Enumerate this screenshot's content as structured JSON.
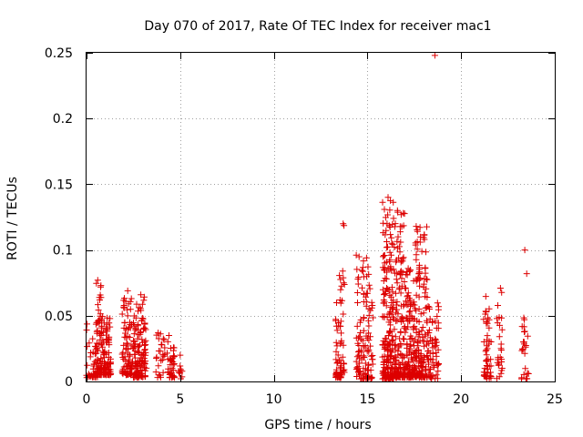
{
  "chart_data": {
    "type": "scatter",
    "title": "Day 070 of 2017, Rate Of TEC Index for receiver mac1",
    "xlabel": "GPS time / hours",
    "ylabel": "ROTI / TECUs",
    "xlim": [
      0,
      25
    ],
    "ylim": [
      0,
      0.25
    ],
    "grid": true,
    "marker": "plus",
    "color": "#dd0000",
    "x_ticks": [
      0,
      5,
      10,
      15,
      20,
      25
    ],
    "x_tick_labels": [
      "0",
      "5",
      "10",
      "15",
      "20",
      "25"
    ],
    "y_ticks": [
      0,
      0.05,
      0.1,
      0.15,
      0.2,
      0.25
    ],
    "y_tick_labels": [
      "0",
      "0.05",
      "0.1",
      "0.15",
      "0.2",
      "0.25"
    ],
    "highlight_points": [
      {
        "x": 18.6,
        "y": 0.248
      },
      {
        "x": 16.1,
        "y": 0.14
      },
      {
        "x": 16.6,
        "y": 0.13
      },
      {
        "x": 13.7,
        "y": 0.12
      },
      {
        "x": 17.6,
        "y": 0.118
      },
      {
        "x": 23.4,
        "y": 0.1
      },
      {
        "x": 23.5,
        "y": 0.082
      },
      {
        "x": 22.1,
        "y": 0.071
      },
      {
        "x": 18.8,
        "y": 0.057
      },
      {
        "x": 0.6,
        "y": 0.077
      },
      {
        "x": 2.2,
        "y": 0.069
      },
      {
        "x": 2.9,
        "y": 0.066
      },
      {
        "x": 4.4,
        "y": 0.035
      },
      {
        "x": 5.0,
        "y": 0.02
      }
    ],
    "clusters": [
      {
        "x_range": [
          0.0,
          0.6
        ],
        "y_range": [
          0.003,
          0.047
        ],
        "count": 40
      },
      {
        "x_range": [
          0.5,
          0.8
        ],
        "y_range": [
          0.005,
          0.078
        ],
        "count": 60
      },
      {
        "x_range": [
          0.7,
          1.3
        ],
        "y_range": [
          0.005,
          0.05
        ],
        "count": 90
      },
      {
        "x_range": [
          1.9,
          2.4
        ],
        "y_range": [
          0.005,
          0.069
        ],
        "count": 80
      },
      {
        "x_range": [
          2.4,
          3.2
        ],
        "y_range": [
          0.003,
          0.067
        ],
        "count": 130
      },
      {
        "x_range": [
          3.7,
          4.2
        ],
        "y_range": [
          0.003,
          0.038
        ],
        "count": 25
      },
      {
        "x_range": [
          4.3,
          4.7
        ],
        "y_range": [
          0.003,
          0.035
        ],
        "count": 35
      },
      {
        "x_range": [
          4.9,
          5.1
        ],
        "y_range": [
          0.002,
          0.02
        ],
        "count": 8
      },
      {
        "x_range": [
          13.3,
          13.6
        ],
        "y_range": [
          0.003,
          0.07
        ],
        "count": 50
      },
      {
        "x_range": [
          13.5,
          13.8
        ],
        "y_range": [
          0.005,
          0.12
        ],
        "count": 25
      },
      {
        "x_range": [
          14.4,
          15.3
        ],
        "y_range": [
          0.002,
          0.1
        ],
        "count": 120
      },
      {
        "x_range": [
          15.8,
          16.4
        ],
        "y_range": [
          0.002,
          0.14
        ],
        "count": 180
      },
      {
        "x_range": [
          16.4,
          17.0
        ],
        "y_range": [
          0.003,
          0.13
        ],
        "count": 140
      },
      {
        "x_range": [
          17.0,
          17.5
        ],
        "y_range": [
          0.003,
          0.09
        ],
        "count": 110
      },
      {
        "x_range": [
          17.5,
          18.2
        ],
        "y_range": [
          0.003,
          0.118
        ],
        "count": 150
      },
      {
        "x_range": [
          18.2,
          18.8
        ],
        "y_range": [
          0.002,
          0.06
        ],
        "count": 60
      },
      {
        "x_range": [
          21.2,
          21.6
        ],
        "y_range": [
          0.002,
          0.065
        ],
        "count": 50
      },
      {
        "x_range": [
          21.9,
          22.2
        ],
        "y_range": [
          0.002,
          0.07
        ],
        "count": 25
      },
      {
        "x_range": [
          23.2,
          23.6
        ],
        "y_range": [
          0.002,
          0.05
        ],
        "count": 25
      }
    ]
  }
}
